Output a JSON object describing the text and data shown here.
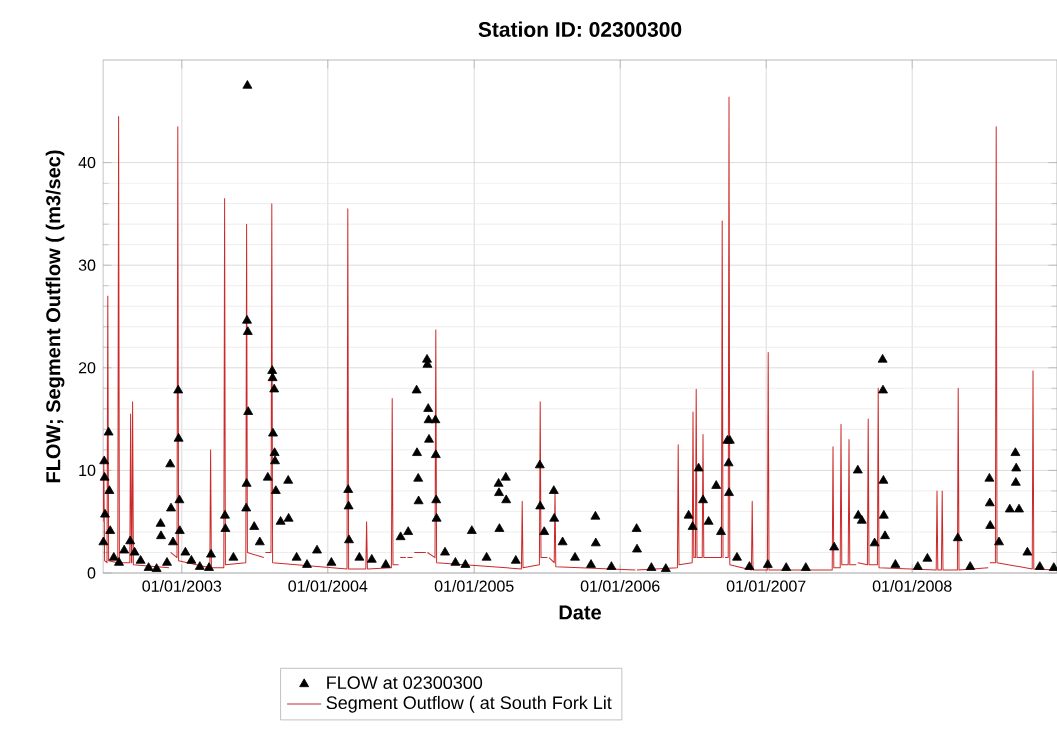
{
  "chart_data": {
    "type": "line",
    "title": "Station ID: 02300300",
    "xlabel": "Date",
    "ylabel": "FLOW; Segment Outflow (  (m3/sec)",
    "xlim": [
      "2002-06-18",
      "2008-12-28"
    ],
    "ylim": [
      0,
      50
    ],
    "xticks": [
      {
        "value": "2003-01-01",
        "label": "01/01/2003"
      },
      {
        "value": "2004-01-01",
        "label": "01/01/2004"
      },
      {
        "value": "2005-01-01",
        "label": "01/01/2005"
      },
      {
        "value": "2006-01-01",
        "label": "01/01/2006"
      },
      {
        "value": "2007-01-01",
        "label": "01/01/2007"
      },
      {
        "value": "2008-01-01",
        "label": "01/01/2008"
      }
    ],
    "yticks": [
      0,
      10,
      20,
      30,
      40
    ],
    "grid": true,
    "legend": "bottom",
    "series": [
      {
        "name": "FLOW at 02300300",
        "type": "scatter",
        "marker": "triangle",
        "color": "#000000",
        "x": [
          "2002-06-19",
          "2002-06-21",
          "2002-06-22",
          "2002-06-23",
          "2002-07-02",
          "2002-07-04",
          "2002-07-06",
          "2002-07-15",
          "2002-07-28",
          "2002-08-10",
          "2002-08-25",
          "2002-09-05",
          "2002-09-20",
          "2002-10-10",
          "2002-10-30",
          "2002-11-09",
          "2002-11-10",
          "2002-11-25",
          "2002-12-03",
          "2002-12-05",
          "2002-12-10",
          "2002-12-23",
          "2002-12-24",
          "2002-12-26",
          "2002-12-27",
          "2003-01-10",
          "2003-01-25",
          "2003-02-15",
          "2003-03-10",
          "2003-03-15",
          "2003-04-19",
          "2003-04-20",
          "2003-05-10",
          "2003-06-11",
          "2003-06-12",
          "2003-06-13",
          "2003-06-14",
          "2003-06-15",
          "2003-06-16",
          "2003-07-01",
          "2003-07-15",
          "2003-08-04",
          "2003-08-15",
          "2003-08-16",
          "2003-08-17",
          "2003-08-20",
          "2003-08-21",
          "2003-08-22",
          "2003-08-24",
          "2003-09-05",
          "2003-09-24",
          "2003-09-25",
          "2003-10-15",
          "2003-11-10",
          "2003-12-05",
          "2004-01-10",
          "2004-02-21",
          "2004-02-22",
          "2004-02-23",
          "2004-03-20",
          "2004-04-20",
          "2004-05-25",
          "2004-07-01",
          "2004-07-20",
          "2004-08-10",
          "2004-08-11",
          "2004-08-14",
          "2004-08-15",
          "2004-09-05",
          "2004-09-06",
          "2004-09-08",
          "2004-09-09",
          "2004-09-10",
          "2004-09-26",
          "2004-09-27",
          "2004-09-28",
          "2004-09-29",
          "2004-10-20",
          "2004-11-15",
          "2004-12-10",
          "2004-12-26",
          "2005-02-01",
          "2005-03-03",
          "2005-03-04",
          "2005-03-05",
          "2005-03-21",
          "2005-03-22",
          "2005-04-15",
          "2005-06-14",
          "2005-06-15",
          "2005-06-25",
          "2005-07-19",
          "2005-07-20",
          "2005-08-10",
          "2005-09-10",
          "2005-10-20",
          "2005-10-31",
          "2005-11-01",
          "2005-12-10",
          "2006-02-11",
          "2006-02-12",
          "2006-03-20",
          "2006-04-25",
          "2006-06-21",
          "2006-07-01",
          "2006-07-16",
          "2006-07-27",
          "2006-08-10",
          "2006-08-29",
          "2006-09-10",
          "2006-09-26",
          "2006-09-29",
          "2006-09-30",
          "2006-10-02",
          "2006-10-20",
          "2006-11-20",
          "2007-01-05",
          "2007-02-20",
          "2007-04-10",
          "2007-06-20",
          "2007-08-18",
          "2007-08-19",
          "2007-08-28",
          "2007-09-29",
          "2007-10-19",
          "2007-10-20",
          "2007-10-21",
          "2007-10-22",
          "2007-10-25",
          "2007-11-20",
          "2008-01-15",
          "2008-02-08",
          "2008-04-24",
          "2008-05-25",
          "2008-07-12",
          "2008-07-13",
          "2008-07-14",
          "2008-08-05",
          "2008-09-01",
          "2008-09-15",
          "2008-09-16",
          "2008-09-17",
          "2008-09-24",
          "2008-10-15",
          "2008-11-15",
          "2008-12-20"
        ],
        "values": [
          3.0,
          10.9,
          9.3,
          5.7,
          13.7,
          8.0,
          4.1,
          1.5,
          1.0,
          2.2,
          3.1,
          2.0,
          1.2,
          0.5,
          0.4,
          4.8,
          3.6,
          1.0,
          10.6,
          6.3,
          3.0,
          17.8,
          13.1,
          7.1,
          4.1,
          2.0,
          1.2,
          0.6,
          0.5,
          1.8,
          5.6,
          4.3,
          1.5,
          6.3,
          8.7,
          24.6,
          47.5,
          23.5,
          15.7,
          4.5,
          3.0,
          9.3,
          19.7,
          19.0,
          13.6,
          17.9,
          11.7,
          10.9,
          8.0,
          5.0,
          9.0,
          5.3,
          1.5,
          0.8,
          2.2,
          1.0,
          8.1,
          6.5,
          3.2,
          1.5,
          1.3,
          0.8,
          3.5,
          4.0,
          17.8,
          11.7,
          9.2,
          7.0,
          20.8,
          20.3,
          16.0,
          14.9,
          13.0,
          14.9,
          11.5,
          7.1,
          5.3,
          2.0,
          1.0,
          0.8,
          4.1,
          1.5,
          8.7,
          7.8,
          4.3,
          9.3,
          7.1,
          1.2,
          10.5,
          6.5,
          4.0,
          8.0,
          5.3,
          3.0,
          1.5,
          0.8,
          5.5,
          2.9,
          0.6,
          4.3,
          2.3,
          0.5,
          0.4,
          5.6,
          4.5,
          10.2,
          7.1,
          5.0,
          8.5,
          4.0,
          12.9,
          10.7,
          7.8,
          12.9,
          1.5,
          0.6,
          0.8,
          0.5,
          0.5,
          2.5,
          10.0,
          5.6,
          5.1,
          2.9,
          20.8,
          17.8,
          9.0,
          5.6,
          3.6,
          0.8,
          0.6,
          1.4,
          3.4,
          0.6,
          9.2,
          6.8,
          4.6,
          3.0,
          6.2,
          11.7,
          8.8,
          10.2,
          6.2,
          2.0,
          0.6,
          0.5
        ]
      },
      {
        "name": "Segment Outflow ( at South Fork Lit",
        "type": "line",
        "line_style": "solid",
        "color": "#cc2a2a",
        "x": [
          "2002-06-18",
          "2002-06-20",
          "2002-06-22",
          "2002-06-28",
          "2002-06-30",
          "2002-07-02",
          "2002-07-25",
          "2002-07-27",
          "2002-07-29",
          "2002-08-24",
          "2002-08-26",
          "2002-08-28",
          "2002-08-29",
          "2002-08-31",
          "2002-09-02",
          "2002-11-30",
          "2002-12-02",
          "2002-12-04",
          "2002-12-20",
          "2002-12-22",
          "2002-12-24",
          "2003-03-12",
          "2003-03-14",
          "2003-03-16",
          "2003-04-16",
          "2003-04-18",
          "2003-04-20",
          "2003-06-10",
          "2003-06-12",
          "2003-06-14",
          "2003-07-25",
          "2003-07-27",
          "2003-07-29",
          "2003-08-12",
          "2003-08-14",
          "2003-08-16",
          "2004-02-18",
          "2004-02-20",
          "2004-02-22",
          "2004-04-05",
          "2004-04-07",
          "2004-04-09",
          "2004-06-08",
          "2004-06-10",
          "2004-06-12",
          "2004-06-26",
          "2004-06-28",
          "2004-06-30",
          "2004-07-14",
          "2004-07-16",
          "2004-07-18",
          "2004-07-31",
          "2004-08-02",
          "2004-08-04",
          "2004-09-02",
          "2004-09-04",
          "2004-09-06",
          "2004-09-25",
          "2004-09-27",
          "2004-09-29",
          "2005-04-29",
          "2005-05-01",
          "2005-05-03",
          "2005-06-13",
          "2005-06-15",
          "2005-06-17",
          "2005-07-03",
          "2005-07-05",
          "2005-07-07",
          "2005-07-20",
          "2005-07-22",
          "2005-07-24",
          "2006-02-08",
          "2006-02-10",
          "2006-02-12",
          "2006-05-24",
          "2006-05-26",
          "2006-05-28",
          "2006-06-30",
          "2006-07-02",
          "2006-07-04",
          "2006-07-08",
          "2006-07-10",
          "2006-07-12",
          "2006-07-25",
          "2006-07-27",
          "2006-07-29",
          "2006-09-11",
          "2006-09-13",
          "2006-09-15",
          "2006-09-16",
          "2006-09-18",
          "2006-09-20",
          "2006-09-28",
          "2006-09-30",
          "2006-10-02",
          "2006-11-25",
          "2006-11-27",
          "2006-11-29",
          "2007-01-04",
          "2007-01-06",
          "2007-01-08",
          "2007-06-15",
          "2007-06-17",
          "2007-06-19",
          "2007-07-05",
          "2007-07-07",
          "2007-07-09",
          "2007-07-25",
          "2007-07-27",
          "2007-07-29",
          "2007-08-14",
          "2007-08-16",
          "2007-08-18",
          "2007-09-11",
          "2007-09-13",
          "2007-09-15",
          "2007-10-06",
          "2007-10-08",
          "2007-10-10",
          "2008-03-01",
          "2008-03-03",
          "2008-03-05",
          "2008-03-14",
          "2008-03-16",
          "2008-03-18",
          "2008-04-23",
          "2008-04-25",
          "2008-04-27",
          "2008-07-09",
          "2008-07-11",
          "2008-07-13",
          "2008-07-27",
          "2008-07-29",
          "2008-07-31",
          "2008-10-27",
          "2008-10-29",
          "2008-10-31",
          "2008-12-28"
        ],
        "values": [
          5,
          11,
          1.2,
          1.0,
          27,
          1.2,
          1.0,
          44.5,
          1.0,
          1.0,
          15.5,
          1.0,
          1.0,
          16.7,
          0.8,
          0.5,
          null,
          2.0,
          1.5,
          43.5,
          1.2,
          0.5,
          12,
          0.5,
          0.5,
          36.5,
          0.8,
          1.0,
          34,
          2.0,
          1.5,
          null,
          2.0,
          2.0,
          36,
          1.0,
          0.4,
          35.5,
          0.4,
          0.4,
          5,
          0.4,
          0.5,
          17,
          0.8,
          0.8,
          null,
          1.5,
          1.5,
          null,
          1.5,
          1.5,
          null,
          2.0,
          2.0,
          null,
          2.0,
          1.5,
          23.7,
          1.0,
          0.4,
          7,
          0.5,
          0.8,
          16.7,
          1.5,
          1.5,
          null,
          1.5,
          1.0,
          8,
          0.6,
          0.3,
          null,
          0.3,
          0.5,
          12.5,
          0.8,
          1.0,
          15.7,
          1.5,
          1.5,
          17.9,
          1.5,
          1.5,
          13.5,
          1.5,
          1.5,
          34.3,
          1.5,
          1.5,
          null,
          1.5,
          1.5,
          46.4,
          0.8,
          0.3,
          7,
          0.3,
          0.3,
          21.5,
          0.3,
          0.3,
          12.3,
          0.5,
          0.5,
          14.5,
          0.8,
          0.8,
          13,
          0.8,
          0.8,
          null,
          1.0,
          0.8,
          15,
          0.8,
          0.8,
          18,
          0.5,
          0.3,
          8,
          0.3,
          0.3,
          8,
          0.3,
          0.3,
          18,
          0.3,
          0.5,
          null,
          1.0,
          1.0,
          43.5,
          1.0,
          0.4,
          19.7,
          0.4,
          0.3
        ]
      }
    ]
  }
}
